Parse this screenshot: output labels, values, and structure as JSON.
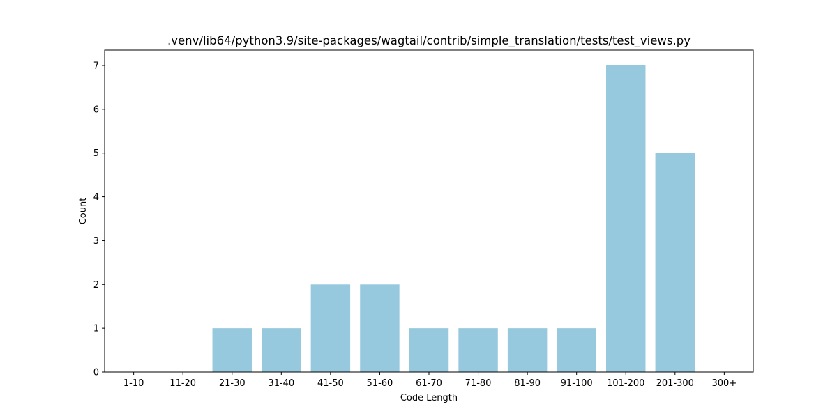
{
  "chart_data": {
    "type": "bar",
    "title": ".venv/lib64/python3.9/site-packages/wagtail/contrib/simple_translation/tests/test_views.py",
    "xlabel": "Code Length",
    "ylabel": "Count",
    "categories": [
      "1-10",
      "11-20",
      "21-30",
      "31-40",
      "41-50",
      "51-60",
      "61-70",
      "71-80",
      "81-90",
      "91-100",
      "101-200",
      "201-300",
      "300+"
    ],
    "values": [
      0,
      0,
      1,
      1,
      2,
      2,
      1,
      1,
      1,
      1,
      7,
      5,
      0
    ],
    "yticks": [
      0,
      1,
      2,
      3,
      4,
      5,
      6,
      7
    ],
    "ylim": [
      0,
      7.35
    ],
    "bar_color": "#96c9dd",
    "grid": false,
    "legend": "none"
  }
}
